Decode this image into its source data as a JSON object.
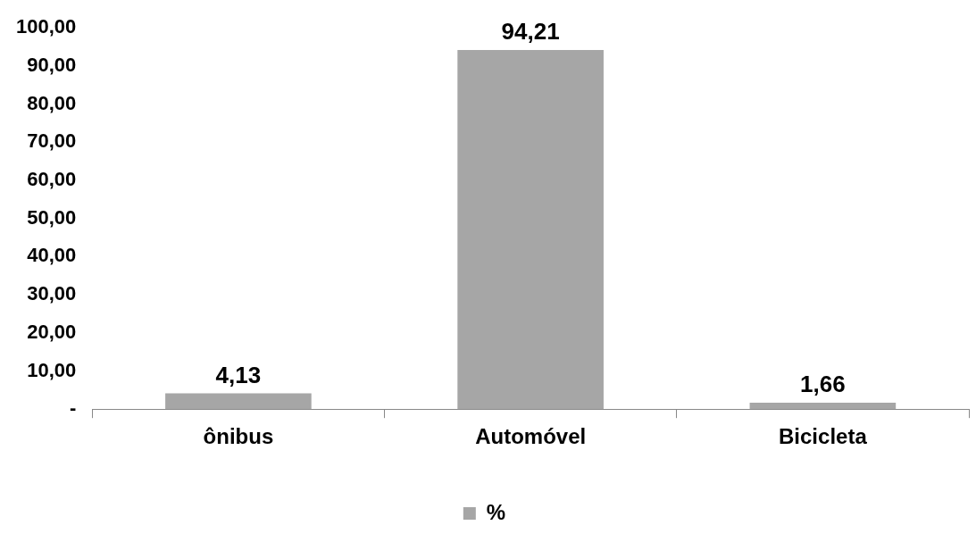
{
  "chart_data": {
    "type": "bar",
    "categories": [
      "ônibus",
      "Automóvel",
      "Bicicleta"
    ],
    "series": [
      {
        "name": "%",
        "color": "#a6a6a6",
        "values": [
          4.13,
          94.21,
          1.66
        ],
        "value_labels": [
          "4,13",
          "94,21",
          "1,66"
        ]
      }
    ],
    "ylim": [
      0,
      100
    ],
    "yticks": [
      {
        "value": 0,
        "label": "-"
      },
      {
        "value": 10,
        "label": "10,00"
      },
      {
        "value": 20,
        "label": "20,00"
      },
      {
        "value": 30,
        "label": "30,00"
      },
      {
        "value": 40,
        "label": "40,00"
      },
      {
        "value": 50,
        "label": "50,00"
      },
      {
        "value": 60,
        "label": "60,00"
      },
      {
        "value": 70,
        "label": "70,00"
      },
      {
        "value": 80,
        "label": "80,00"
      },
      {
        "value": 90,
        "label": "90,00"
      },
      {
        "value": 100,
        "label": "100,00"
      }
    ],
    "grid": false,
    "legend": "bottom"
  }
}
